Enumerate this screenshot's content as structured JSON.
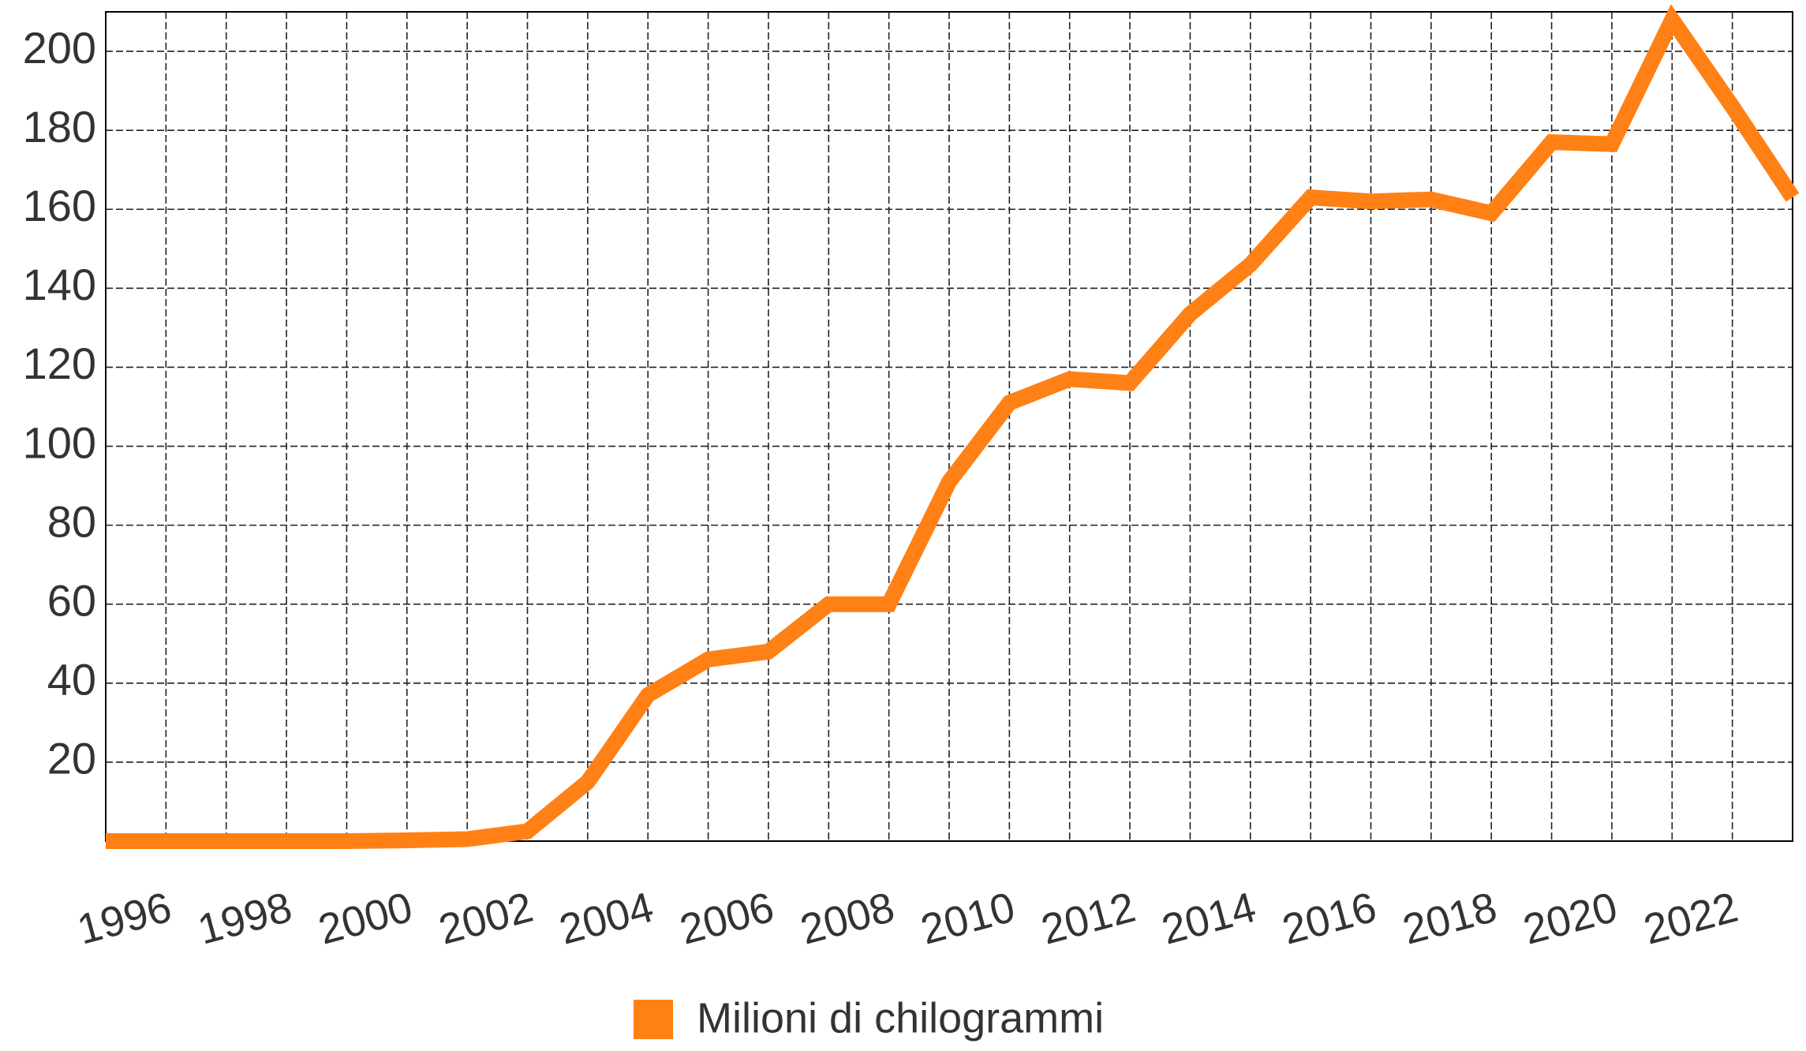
{
  "chart_data": {
    "type": "line",
    "x": [
      1995,
      1996,
      1997,
      1998,
      1999,
      2000,
      2001,
      2002,
      2003,
      2004,
      2005,
      2006,
      2007,
      2008,
      2009,
      2010,
      2011,
      2012,
      2013,
      2014,
      2015,
      2016,
      2017,
      2018,
      2019,
      2020,
      2021,
      2022,
      2023
    ],
    "series": [
      {
        "name": "Milioni di chilogrammi",
        "color": "#ff8116",
        "values": [
          0,
          0,
          0,
          0,
          0,
          0.2,
          0.5,
          2.5,
          15,
          37,
          46,
          48,
          60,
          60,
          91,
          111,
          117,
          116,
          133.5,
          146,
          163,
          162,
          162.5,
          159,
          177,
          176.5,
          208,
          186,
          163
        ]
      }
    ],
    "xlim": [
      1995,
      2023
    ],
    "xticks": [
      1996,
      1998,
      2000,
      2002,
      2004,
      2006,
      2008,
      2010,
      2012,
      2014,
      2016,
      2018,
      2020,
      2022
    ],
    "ylim": [
      0,
      210
    ],
    "yticks": [
      20,
      40,
      60,
      80,
      100,
      120,
      140,
      160,
      180,
      200
    ],
    "grid": true
  }
}
